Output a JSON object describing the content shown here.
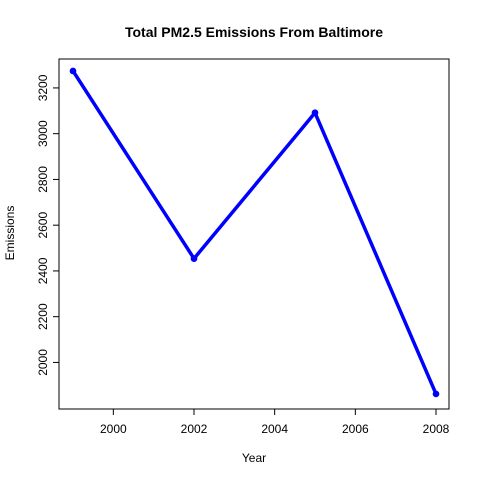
{
  "chart_data": {
    "type": "line",
    "title": "Total PM2.5 Emissions From Baltimore",
    "xlabel": "Year",
    "ylabel": "Emissions",
    "x": [
      1999,
      2002,
      2005,
      2008
    ],
    "series": [
      {
        "values": [
          3274.18,
          2453.92,
          3091.35,
          1862.28
        ]
      }
    ],
    "xlim": [
      1999,
      2008
    ],
    "ylim": [
      1862,
      3274
    ],
    "xticks": [
      2000,
      2002,
      2004,
      2006,
      2008
    ],
    "yticks": [
      2000,
      2200,
      2400,
      2600,
      2800,
      3000,
      3200
    ],
    "grid": false,
    "line_color": "#0000ff",
    "marker": "circle"
  }
}
